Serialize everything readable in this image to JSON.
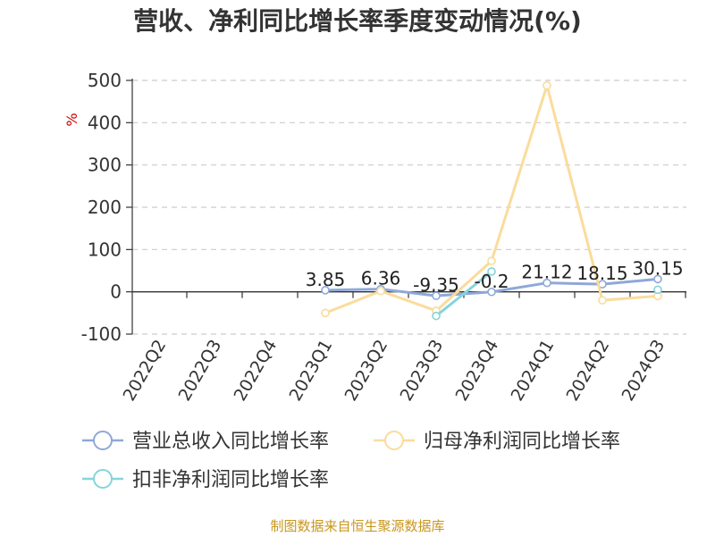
{
  "chart_data": {
    "type": "line",
    "title": "营收、净利同比增长率季度变动情况(%)",
    "ylabel": "%",
    "xlabel": "",
    "ylim": [
      -100,
      500
    ],
    "y_ticks": [
      500,
      400,
      300,
      200,
      100,
      0,
      -100
    ],
    "grid": true,
    "legend_position": "bottom",
    "categories": [
      "2022Q2",
      "2022Q3",
      "2022Q4",
      "2023Q1",
      "2023Q2",
      "2023Q3",
      "2023Q4",
      "2024Q1",
      "2024Q2",
      "2024Q3"
    ],
    "series": [
      {
        "name": "营业总收入同比增长率",
        "color": "#8fa8d8",
        "values": [
          null,
          null,
          null,
          3.85,
          6.36,
          -9.35,
          -0.2,
          21.12,
          18.15,
          30.15
        ],
        "labels": [
          "",
          "",
          "",
          "3.85",
          "6.36",
          "-9.35",
          "-0.2",
          "21.12",
          "18.15",
          "30.15"
        ]
      },
      {
        "name": "归母净利润同比增长率",
        "color": "#fadc9c",
        "values": [
          null,
          null,
          null,
          -50,
          2,
          -45,
          73,
          488,
          -20,
          -10
        ]
      },
      {
        "name": "扣非净利润同比增长率",
        "color": "#86d4dc",
        "values": [
          null,
          null,
          null,
          null,
          null,
          -57,
          48,
          null,
          null,
          5
        ]
      }
    ]
  },
  "source": "制图数据来自恒生聚源数据库"
}
